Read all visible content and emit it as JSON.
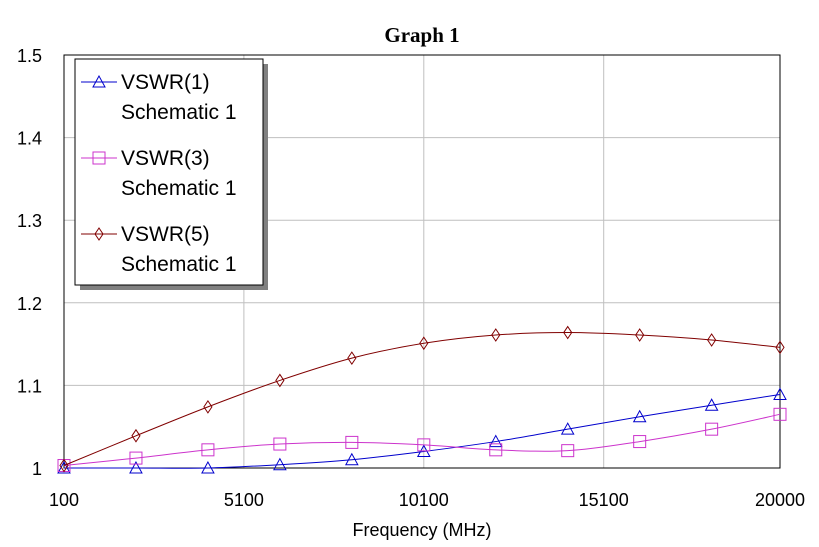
{
  "chart_data": {
    "type": "line",
    "title": "Graph 1",
    "xlabel": "Frequency (MHz)",
    "ylabel": "",
    "xlim": [
      100,
      20000
    ],
    "ylim": [
      1.0,
      1.5
    ],
    "xticks": [
      100,
      5100,
      10100,
      15100,
      20000
    ],
    "xtick_labels": [
      "100",
      "5100",
      "10100",
      "15100",
      "20000"
    ],
    "yticks": [
      1.0,
      1.1,
      1.2,
      1.3,
      1.4,
      1.5
    ],
    "ytick_labels": [
      "1",
      "1.1",
      "1.2",
      "1.3",
      "1.4",
      "1.5"
    ],
    "grid": true,
    "legend_position": "top-left",
    "series": [
      {
        "name": "VSWR(1)",
        "subname": "Schematic 1",
        "color": "#0000CC",
        "marker": "triangle",
        "x": [
          100,
          2100,
          4100,
          6100,
          8100,
          10100,
          12100,
          14100,
          16100,
          18100,
          20000
        ],
        "y": [
          1.0,
          0.998,
          1.0,
          1.004,
          1.01,
          1.02,
          1.032,
          1.047,
          1.062,
          1.076,
          1.089
        ]
      },
      {
        "name": "VSWR(3)",
        "subname": "Schematic 1",
        "color": "#CC33CC",
        "marker": "square",
        "x": [
          100,
          2100,
          4100,
          6100,
          8100,
          10100,
          12100,
          14100,
          16100,
          18100,
          20000
        ],
        "y": [
          1.003,
          1.012,
          1.022,
          1.029,
          1.031,
          1.028,
          1.022,
          1.021,
          1.032,
          1.047,
          1.065
        ]
      },
      {
        "name": "VSWR(5)",
        "subname": "Schematic 1",
        "color": "#800000",
        "marker": "diamond",
        "x": [
          100,
          2100,
          4100,
          6100,
          8100,
          10100,
          12100,
          14100,
          16100,
          18100,
          20000
        ],
        "y": [
          1.003,
          1.039,
          1.074,
          1.106,
          1.133,
          1.151,
          1.161,
          1.164,
          1.161,
          1.155,
          1.146
        ]
      }
    ]
  }
}
